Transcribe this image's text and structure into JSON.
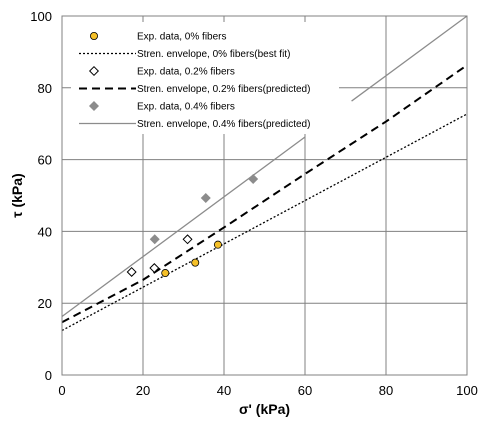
{
  "chart_data": {
    "type": "scatter",
    "xlabel": "σ' (kPa)",
    "ylabel": "τ (kPa)",
    "xlim": [
      0,
      100
    ],
    "ylim": [
      0,
      100
    ],
    "xticks": [
      0,
      20,
      40,
      60,
      80,
      100
    ],
    "yticks": [
      0,
      20,
      40,
      60,
      80,
      100
    ],
    "grid": true,
    "legend_position": "top-left",
    "series": [
      {
        "name": "Exp. data, 0% fibers",
        "kind": "points",
        "marker": "circle",
        "color": "#F5C028",
        "x": [
          25.5,
          32.9,
          38.5
        ],
        "y": [
          28.4,
          31.3,
          36.3
        ]
      },
      {
        "name": "Stren. envelope, 0% fibers(best fit)",
        "kind": "line",
        "dash": "dotted",
        "color": "#000000",
        "x": [
          0,
          100
        ],
        "y": [
          12.4,
          72.7
        ]
      },
      {
        "name": "Exp. data, 0.2% fibers",
        "kind": "points",
        "marker": "diamond-open",
        "color": "#000000",
        "x": [
          17.2,
          22.8,
          31.0
        ],
        "y": [
          28.7,
          29.8,
          37.8
        ]
      },
      {
        "name": "Stren. envelope, 0.2% fibers(predicted)",
        "kind": "line",
        "dash": "dashed",
        "color": "#000000",
        "x": [
          0,
          20,
          40,
          60,
          80,
          100
        ],
        "y": [
          14.7,
          26.5,
          41.1,
          56.0,
          70.6,
          86.3
        ]
      },
      {
        "name": "Exp. data, 0.4% fibers",
        "kind": "points",
        "marker": "diamond",
        "color": "#8C8C8C",
        "x": [
          22.9,
          35.5,
          47.2
        ],
        "y": [
          37.8,
          49.3,
          54.6
        ]
      },
      {
        "name": "Stren. envelope, 0.4% fibers(predicted)",
        "kind": "line",
        "dash": "solid",
        "color": "#8C8C8C",
        "segments": [
          {
            "x": [
              0,
              60
            ],
            "y": [
              16.3,
              66.3
            ]
          },
          {
            "x": [
              71.5,
              100
            ],
            "y": [
              76.3,
              100.0
            ]
          }
        ]
      }
    ]
  }
}
